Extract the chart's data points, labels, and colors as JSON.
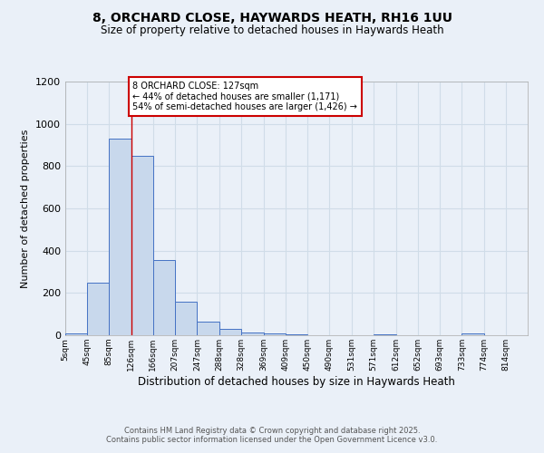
{
  "title_line1": "8, ORCHARD CLOSE, HAYWARDS HEATH, RH16 1UU",
  "title_line2": "Size of property relative to detached houses in Haywards Heath",
  "xlabel": "Distribution of detached houses by size in Haywards Heath",
  "ylabel": "Number of detached properties",
  "bin_edges": [
    5,
    45,
    85,
    126,
    166,
    207,
    247,
    288,
    328,
    369,
    409,
    450,
    490,
    531,
    571,
    612,
    652,
    693,
    733,
    774,
    814
  ],
  "bar_heights": [
    10,
    250,
    930,
    850,
    355,
    160,
    65,
    30,
    15,
    10,
    5,
    0,
    0,
    0,
    5,
    0,
    0,
    0,
    10,
    0
  ],
  "bar_color": "#c8d8ec",
  "bar_edge_color": "#4472c4",
  "background_color": "#eaf0f8",
  "grid_color": "#d0dce8",
  "red_line_x": 127,
  "annotation_text": "8 ORCHARD CLOSE: 127sqm\n← 44% of detached houses are smaller (1,171)\n54% of semi-detached houses are larger (1,426) →",
  "annotation_box_color": "#ffffff",
  "annotation_border_color": "#cc0000",
  "ylim": [
    0,
    1200
  ],
  "yticks": [
    0,
    200,
    400,
    600,
    800,
    1000,
    1200
  ],
  "footer_text": "Contains HM Land Registry data © Crown copyright and database right 2025.\nContains public sector information licensed under the Open Government Licence v3.0.",
  "tick_labels": [
    "5sqm",
    "45sqm",
    "85sqm",
    "126sqm",
    "166sqm",
    "207sqm",
    "247sqm",
    "288sqm",
    "328sqm",
    "369sqm",
    "409sqm",
    "450sqm",
    "490sqm",
    "531sqm",
    "571sqm",
    "612sqm",
    "652sqm",
    "693sqm",
    "733sqm",
    "774sqm",
    "814sqm"
  ]
}
